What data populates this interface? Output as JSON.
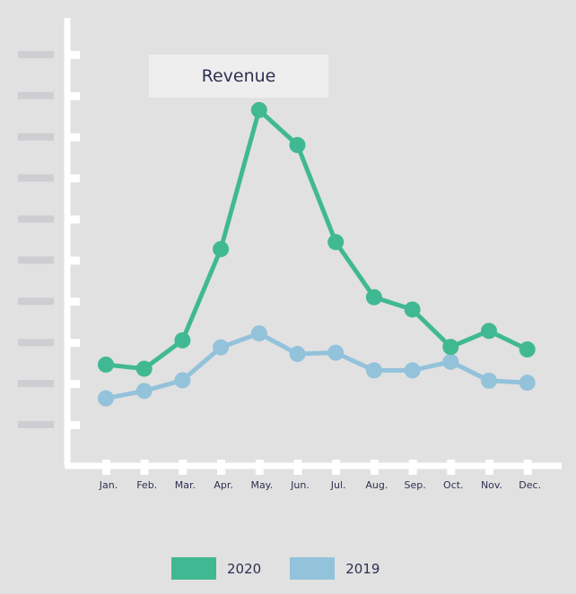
{
  "chart_data": {
    "type": "line",
    "title": "Revenue",
    "categories": [
      "Jan.",
      "Feb.",
      "Mar.",
      "Apr.",
      "May.",
      "Jun.",
      "Jul.",
      "Aug.",
      "Sep.",
      "Oct.",
      "Nov.",
      "Dec."
    ],
    "series": [
      {
        "name": "2020",
        "color": "#40b992",
        "values": [
          1.46,
          1.36,
          2.05,
          4.27,
          7.65,
          6.8,
          4.44,
          3.1,
          2.8,
          1.89,
          2.28,
          1.83
        ]
      },
      {
        "name": "2019",
        "color": "#93c2db",
        "values": [
          0.64,
          0.82,
          1.08,
          1.88,
          2.22,
          1.72,
          1.75,
          1.32,
          1.32,
          1.53,
          1.07,
          1.02
        ]
      }
    ],
    "ylim": [
      -1,
      10
    ],
    "y_tick_count": 10,
    "y_tick_labels_obscured": true,
    "grid": false,
    "legend": "bottom-center",
    "xlabel": "",
    "ylabel": ""
  }
}
